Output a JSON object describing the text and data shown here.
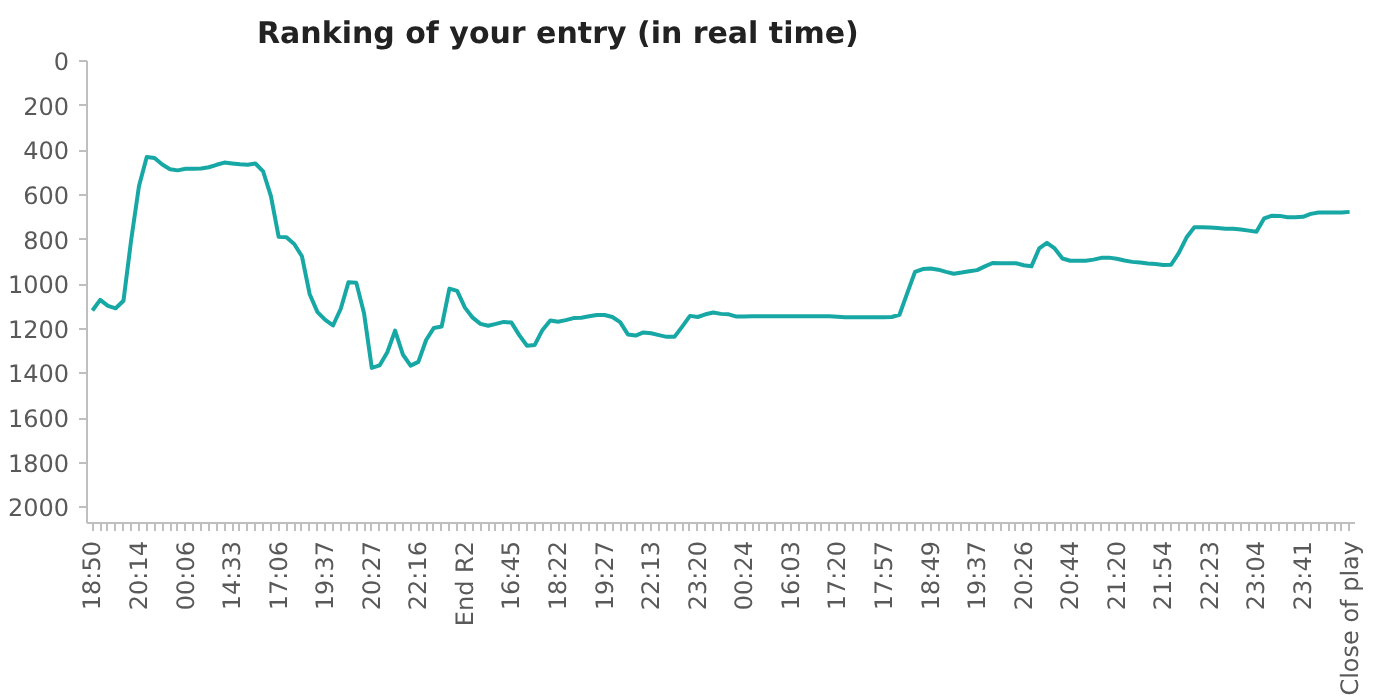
{
  "chart_data": {
    "type": "line",
    "title": "Ranking of your entry (in real time)",
    "categories": [
      "18:50",
      null,
      null,
      null,
      null,
      null,
      "20:14",
      null,
      null,
      null,
      null,
      null,
      "00:06",
      null,
      null,
      null,
      null,
      null,
      "14:33",
      null,
      null,
      null,
      null,
      null,
      "17:06",
      null,
      null,
      null,
      null,
      null,
      "19:37",
      null,
      null,
      null,
      null,
      null,
      "20:27",
      null,
      null,
      null,
      null,
      null,
      "22:16",
      null,
      null,
      null,
      null,
      null,
      "End R2",
      null,
      null,
      null,
      null,
      null,
      "16:45",
      null,
      null,
      null,
      null,
      null,
      "18:22",
      null,
      null,
      null,
      null,
      null,
      "19:27",
      null,
      null,
      null,
      null,
      null,
      "22:13",
      null,
      null,
      null,
      null,
      null,
      "23:20",
      null,
      null,
      null,
      null,
      null,
      "00:24",
      null,
      null,
      null,
      null,
      null,
      "16:03",
      null,
      null,
      null,
      null,
      null,
      "17:20",
      null,
      null,
      null,
      null,
      null,
      "17:57",
      null,
      null,
      null,
      null,
      null,
      "18:49",
      null,
      null,
      null,
      null,
      null,
      "19:37",
      null,
      null,
      null,
      null,
      null,
      "20:26",
      null,
      null,
      null,
      null,
      null,
      "20:44",
      null,
      null,
      null,
      null,
      null,
      "21:20",
      null,
      null,
      null,
      null,
      null,
      "21:54",
      null,
      null,
      null,
      null,
      null,
      "22:23",
      null,
      null,
      null,
      null,
      null,
      "23:04",
      null,
      null,
      null,
      null,
      null,
      "23:41",
      null,
      null,
      null,
      null,
      null,
      "Close of play"
    ],
    "series": [
      {
        "color": "#17a8a5",
        "values": [
          1118,
          1070,
          1097,
          1108,
          1074,
          800,
          560,
          430,
          435,
          464,
          485,
          490,
          483,
          483,
          482,
          476,
          465,
          455,
          459,
          463,
          465,
          459,
          495,
          605,
          788,
          790,
          820,
          875,
          1045,
          1125,
          1160,
          1185,
          1110,
          991,
          993,
          1130,
          1375,
          1364,
          1305,
          1208,
          1315,
          1365,
          1348,
          1250,
          1196,
          1190,
          1020,
          1030,
          1105,
          1150,
          1178,
          1186,
          1178,
          1169,
          1172,
          1228,
          1276,
          1272,
          1205,
          1163,
          1168,
          1161,
          1152,
          1150,
          1144,
          1138,
          1138,
          1147,
          1170,
          1225,
          1230,
          1216,
          1220,
          1228,
          1236,
          1236,
          1190,
          1142,
          1147,
          1135,
          1127,
          1133,
          1135,
          1145,
          1145,
          1144,
          1144,
          1144,
          1144,
          1144,
          1144,
          1144,
          1144,
          1144,
          1144,
          1144,
          1146,
          1148,
          1148,
          1148,
          1148,
          1148,
          1148,
          1147,
          1137,
          1040,
          945,
          932,
          930,
          935,
          945,
          953,
          948,
          942,
          937,
          920,
          905,
          906,
          906,
          906,
          915,
          920,
          840,
          815,
          840,
          885,
          895,
          895,
          895,
          890,
          882,
          881,
          886,
          894,
          900,
          903,
          907,
          910,
          914,
          913,
          860,
          790,
          745,
          745,
          746,
          748,
          752,
          752,
          755,
          760,
          765,
          705,
          693,
          694,
          700,
          700,
          698,
          685,
          679,
          679,
          679,
          679,
          676
        ]
      }
    ],
    "ylim": [
      2070,
      0
    ],
    "yticks": [
      0,
      200,
      400,
      600,
      800,
      1000,
      1200,
      1400,
      1600,
      1800,
      2000
    ],
    "grid": false,
    "marker": "none",
    "line_style": "solid"
  }
}
